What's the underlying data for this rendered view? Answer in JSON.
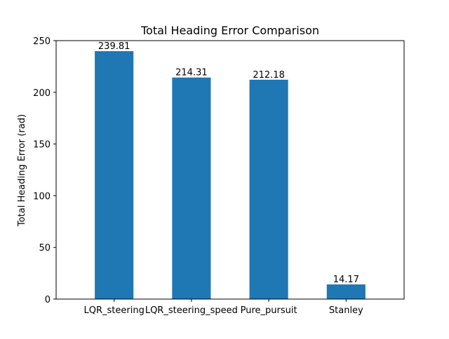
{
  "chart_data": {
    "type": "bar",
    "title": "Total Heading Error Comparison",
    "xlabel": "",
    "ylabel": "Total Heading Error (rad)",
    "categories": [
      "LQR_steering",
      "LQR_steering_speed",
      "Pure_pursuit",
      "Stanley"
    ],
    "values": [
      239.81,
      214.31,
      212.18,
      14.17
    ],
    "data_labels": [
      "239.81",
      "214.31",
      "212.18",
      "14.17"
    ],
    "ylim": [
      0,
      250
    ],
    "yticks": [
      0,
      50,
      100,
      150,
      200,
      250
    ],
    "grid": false,
    "legend": "none",
    "bar_color": "#1f77b4"
  }
}
